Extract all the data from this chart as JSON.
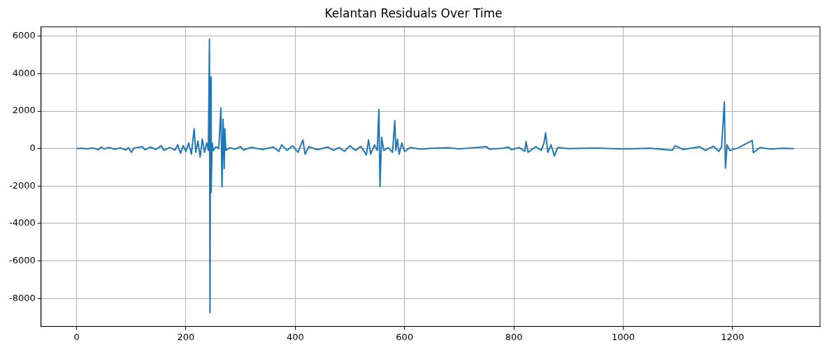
{
  "chart_data": {
    "type": "line",
    "title": "Kelantan Residuals Over Time",
    "grid": true,
    "legend": false,
    "marker": "none",
    "xlim": [
      -65,
      1360
    ],
    "xticks": [
      0,
      200,
      400,
      600,
      800,
      1000,
      1200
    ],
    "ylim": [
      -9500,
      6500
    ],
    "yticks": [
      -8000,
      -6000,
      -4000,
      -2000,
      0,
      2000,
      4000,
      6000
    ],
    "series": [
      {
        "color": "#1f77b4",
        "x": [
          0,
          10,
          20,
          30,
          40,
          45,
          50,
          60,
          70,
          80,
          90,
          95,
          100,
          105,
          120,
          125,
          135,
          145,
          155,
          160,
          170,
          180,
          185,
          190,
          195,
          200,
          205,
          210,
          215,
          218,
          222,
          226,
          230,
          234,
          238,
          241,
          243,
          244,
          245,
          246,
          248,
          250,
          255,
          260,
          264,
          266,
          268,
          270,
          271,
          273,
          280,
          290,
          300,
          305,
          320,
          340,
          360,
          370,
          375,
          385,
          395,
          405,
          414,
          418,
          425,
          440,
          460,
          470,
          480,
          490,
          500,
          510,
          520,
          530,
          534,
          538,
          545,
          550,
          553,
          555,
          558,
          562,
          570,
          578,
          582,
          584,
          587,
          590,
          595,
          600,
          610,
          630,
          650,
          680,
          700,
          720,
          750,
          755,
          780,
          790,
          795,
          810,
          820,
          822,
          826,
          840,
          850,
          855,
          858,
          862,
          868,
          874,
          880,
          900,
          950,
          1000,
          1050,
          1090,
          1095,
          1110,
          1140,
          1150,
          1165,
          1175,
          1180,
          1185,
          1187,
          1190,
          1195,
          1210,
          1236,
          1238,
          1250,
          1270,
          1290,
          1312
        ],
        "values": [
          0,
          20,
          -10,
          30,
          -60,
          80,
          -20,
          60,
          -40,
          40,
          -80,
          50,
          -200,
          30,
          100,
          -60,
          80,
          -50,
          150,
          -100,
          60,
          -80,
          200,
          -250,
          150,
          -150,
          300,
          -300,
          1060,
          -200,
          400,
          -450,
          500,
          -200,
          300,
          -100,
          5830,
          -8770,
          3810,
          -2350,
          300,
          -100,
          100,
          0,
          2160,
          -2050,
          1560,
          -1070,
          1060,
          -100,
          50,
          -30,
          100,
          -80,
          60,
          -50,
          80,
          -150,
          200,
          -100,
          150,
          -200,
          460,
          -300,
          100,
          -60,
          80,
          -100,
          60,
          -150,
          150,
          -100,
          120,
          -340,
          460,
          -300,
          200,
          -100,
          2080,
          -2030,
          600,
          -100,
          50,
          -200,
          1490,
          -100,
          500,
          -300,
          300,
          -150,
          50,
          -30,
          20,
          40,
          -20,
          30,
          100,
          -30,
          20,
          80,
          -60,
          50,
          -150,
          370,
          -200,
          100,
          -100,
          300,
          840,
          -200,
          200,
          -400,
          50,
          0,
          30,
          -20,
          20,
          -100,
          150,
          -50,
          100,
          -100,
          120,
          -150,
          100,
          2490,
          -1050,
          200,
          -100,
          30,
          430,
          -220,
          50,
          -30,
          20,
          0
        ]
      }
    ]
  }
}
